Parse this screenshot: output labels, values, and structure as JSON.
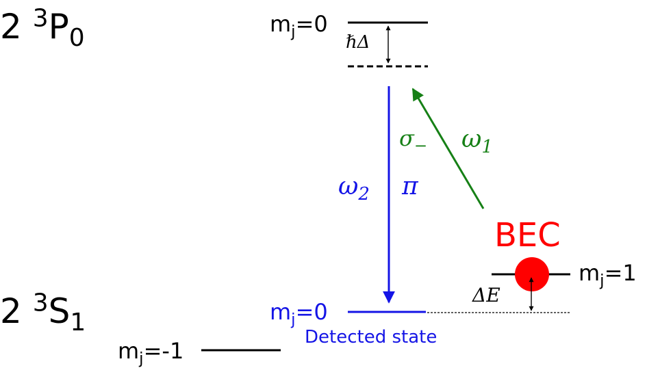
{
  "colors": {
    "level": "#000000",
    "detected": "#1414e6",
    "raman_up": "#168016",
    "bec": "#ff0000"
  },
  "states": {
    "upper": {
      "n": "2",
      "mult": "3",
      "letter": "P",
      "j": "0"
    },
    "lower": {
      "n": "2",
      "mult": "3",
      "letter": "S",
      "j": "1"
    }
  },
  "levels": {
    "p0": {
      "label_base": "m",
      "label_sub": "j",
      "label_val": "=0"
    },
    "s_minus": {
      "label_base": "m",
      "label_sub": "j",
      "label_val": "=-1"
    },
    "s_zero": {
      "label_base": "m",
      "label_sub": "j",
      "label_val": "=0",
      "caption": "Detected state"
    },
    "s_plus": {
      "label_base": "m",
      "label_sub": "j",
      "label_val": "=1"
    }
  },
  "detuning": {
    "symbol": "ℏΔ"
  },
  "energy_shift": {
    "symbol": "ΔE"
  },
  "beams": {
    "omega1": {
      "symbol": "ω",
      "sub": "1",
      "pol": "σ",
      "pol_sub": "−"
    },
    "omega2": {
      "symbol": "ω",
      "sub": "2",
      "pol": "π"
    }
  },
  "bec": {
    "label": "BEC"
  }
}
